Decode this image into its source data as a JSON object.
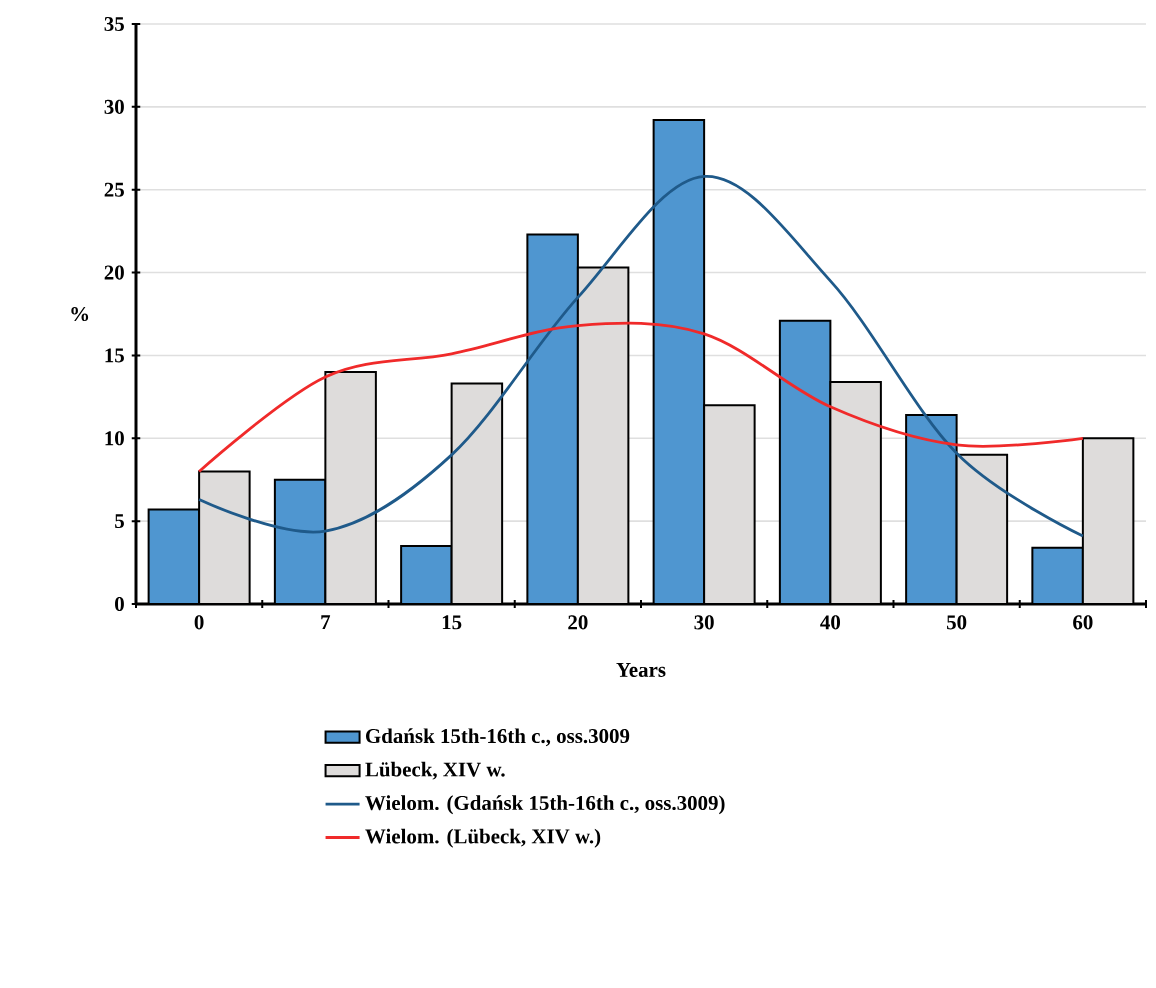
{
  "chart_data": {
    "type": "bar",
    "xlabel": "Years",
    "ylabel": "%",
    "categories": [
      "0",
      "7",
      "15",
      "20",
      "30",
      "40",
      "50",
      "60"
    ],
    "series": [
      {
        "name": "Gdańsk 15th-16th c., oss.3009",
        "color": "#4f96d0",
        "values": [
          5.7,
          7.5,
          3.5,
          22.3,
          29.2,
          17.1,
          11.4,
          3.4
        ]
      },
      {
        "name": "Lübeck, XIV w.",
        "color": "#dedcdb",
        "values": [
          8.0,
          14.0,
          13.3,
          20.3,
          12.0,
          13.4,
          9.0,
          10.0
        ]
      },
      {
        "name": "Wielom. (Gdańsk 15th-16th c., oss.3009)",
        "type": "line",
        "color": "#1f5a8a",
        "values": [
          6.3,
          4.4,
          9.0,
          18.5,
          25.8,
          19.5,
          9.1,
          4.1
        ]
      },
      {
        "name": "Wielom. (Lübeck, XIV w.)",
        "type": "line",
        "color": "#f02a2a",
        "values": [
          8.0,
          13.7,
          15.1,
          16.8,
          16.3,
          11.9,
          9.6,
          10.0
        ]
      }
    ],
    "ylim": [
      0,
      35
    ],
    "yticks": [
      0,
      5,
      10,
      15,
      20,
      25,
      30,
      35
    ],
    "grid": "y",
    "legend": "bottom",
    "line_style": "solid",
    "marker": "none"
  }
}
